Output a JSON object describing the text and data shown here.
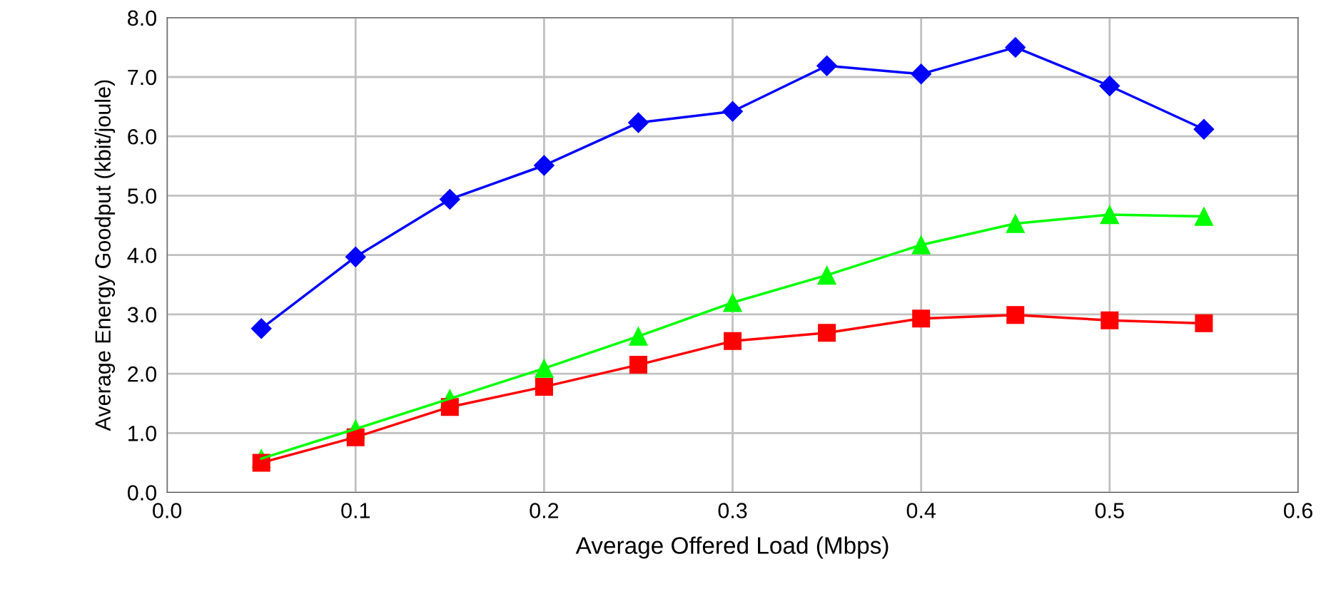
{
  "chart_data": {
    "type": "line",
    "xlabel": "Average Offered Load (Mbps)",
    "ylabel": "Average Energy Goodput (kbit/joule)",
    "x": [
      0.05,
      0.1,
      0.15,
      0.2,
      0.25,
      0.3,
      0.35,
      0.4,
      0.45,
      0.5,
      0.55
    ],
    "series": [
      {
        "color": "#0000ff",
        "marker": "diamond",
        "values": [
          2.76,
          3.97,
          4.94,
          5.51,
          6.23,
          6.42,
          7.19,
          7.05,
          7.5,
          6.85,
          6.12
        ]
      },
      {
        "color": "#00ff00",
        "marker": "triangle",
        "values": [
          0.57,
          1.07,
          1.58,
          2.09,
          2.63,
          3.2,
          3.66,
          4.17,
          4.53,
          4.68,
          4.65
        ]
      },
      {
        "color": "#ff0000",
        "marker": "square",
        "values": [
          0.5,
          0.93,
          1.44,
          1.78,
          2.15,
          2.55,
          2.69,
          2.93,
          2.99,
          2.9,
          2.85
        ]
      }
    ],
    "xlim": [
      0,
      0.6
    ],
    "ylim": [
      0,
      8
    ],
    "xticks": [
      {
        "value": 0,
        "label": "0.0"
      },
      0.1,
      0.2,
      0.3,
      0.4,
      0.5,
      0.6
    ],
    "yticks": [
      {
        "value": 0,
        "label": "0.0"
      },
      {
        "value": 1,
        "label": "1.0"
      },
      {
        "value": 2,
        "label": "2.0"
      },
      {
        "value": 3,
        "label": "3.0"
      },
      {
        "value": 4,
        "label": "4.0"
      },
      {
        "value": 5,
        "label": "5.0"
      },
      {
        "value": 6,
        "label": "6.0"
      },
      {
        "value": 7,
        "label": "7.0"
      },
      {
        "value": 8,
        "label": "8.0"
      }
    ],
    "grid": true,
    "line_style": "solid"
  }
}
